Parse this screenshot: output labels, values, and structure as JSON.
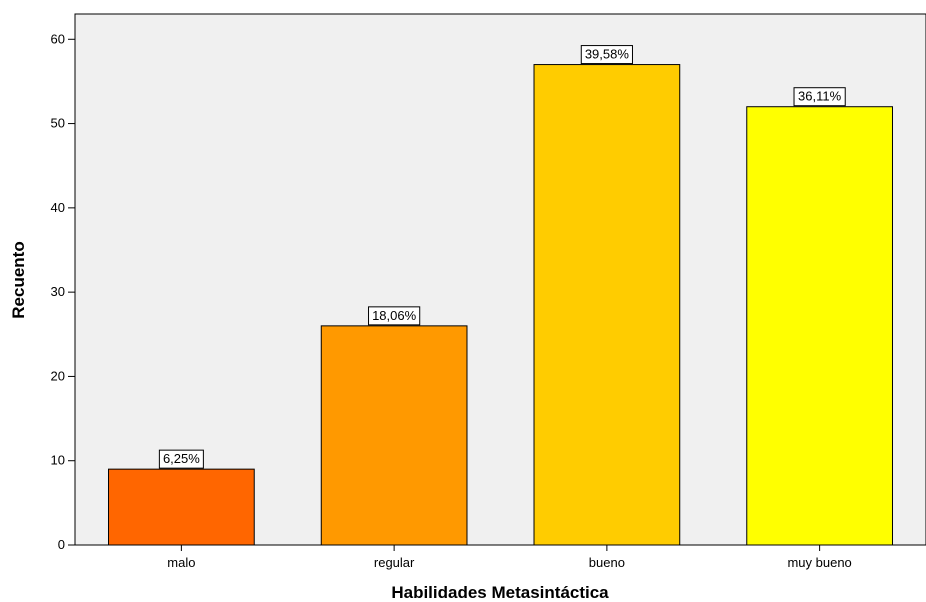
{
  "chart_data": {
    "type": "bar",
    "title": "",
    "xlabel": "Habilidades Metasintáctica",
    "ylabel": "Recuento",
    "categories": [
      "malo",
      "regular",
      "bueno",
      "muy bueno"
    ],
    "values": [
      9,
      26,
      57,
      52
    ],
    "data_labels": [
      "6,25%",
      "18,06%",
      "39,58%",
      "36,11%"
    ],
    "colors": [
      "#ff6600",
      "#ff9900",
      "#ffcc00",
      "#ffff00"
    ],
    "ylim": [
      0,
      63
    ],
    "yticks": [
      0,
      10,
      20,
      30,
      40,
      50,
      60
    ],
    "grid": false,
    "plot_background": "#f0f0f0"
  }
}
